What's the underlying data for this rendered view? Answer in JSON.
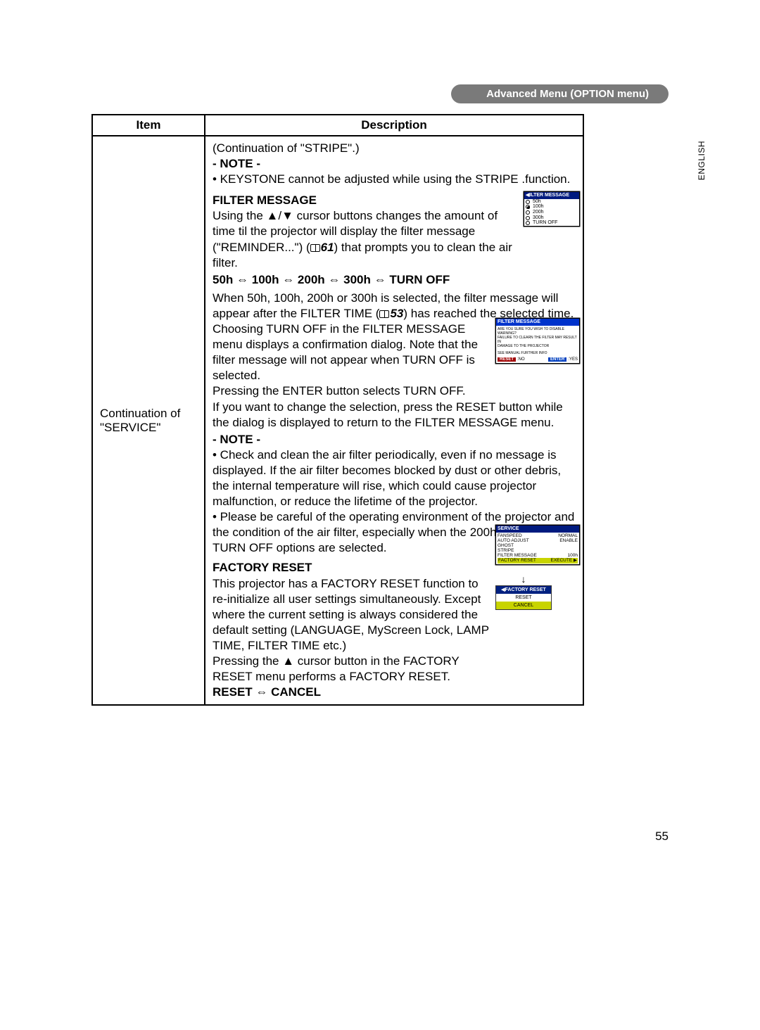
{
  "breadcrumb": "Advanced Menu (OPTION menu)",
  "lang_tab": "ENGLISH",
  "page_number": "55",
  "headers": {
    "item": "Item",
    "description": "Description"
  },
  "left_cell": "Continuation of \"SERVICE\"",
  "desc": {
    "cont_stripe": "(Continuation of \"STRIPE\".)",
    "note_label": "- NOTE -",
    "keystone_note": "• KEYSTONE cannot be adjusted while using the STRIPE .function.",
    "filter_msg_title": "FILTER MESSAGE",
    "filter_msg_1a": "Using the ▲/▼ cursor buttons changes the amount of time til the projector will display the filter message (\"REMINDER...\") (",
    "filter_msg_ref": "61",
    "filter_msg_1b": ") that prompts you to clean the air filter.",
    "filter_options": "50h ⇔ 100h ⇔ 200h ⇔ 300h ⇔ TURN OFF",
    "filter_msg_2a": "When 50h, 100h, 200h or 300h is selected, the filter message will appear after the FILTER TIME (",
    "filter_msg_2ref": "53",
    "filter_msg_2b": ") has reached the selected time.",
    "filter_msg_3": "Choosing TURN OFF in the FILTER MESSAGE menu displays a confirmation dialog. Note that the filter message will not appear when TURN OFF is selected.",
    "filter_msg_4": "Pressing the ENTER button selects TURN OFF.",
    "filter_msg_5": "If you want to change the selection, press the RESET button while the dialog is displayed to return to the FILTER MESSAGE menu.",
    "note2_1": "• Check and clean the air filter periodically, even if no message is displayed. If the air filter becomes blocked by dust or other debris, the internal temperature will rise, which could cause projector malfunction, or reduce the lifetime of the projector.",
    "note2_2": "• Please be careful of the operating environment of the projector and the condition of the air filter, especially when the 200h, 300h or TURN OFF options are selected.",
    "factory_title": "FACTORY RESET",
    "factory_1": "This projector has a FACTORY RESET function to re-initialize all user settings simultaneously. Except where the current setting is always considered the default setting (LANGUAGE, MyScreen Lock, LAMP TIME, FILTER TIME etc.)",
    "factory_2": "Pressing the ▲ cursor button in the FACTORY RESET menu performs a FACTORY RESET.",
    "reset_cancel": "RESET ⇔ CANCEL"
  },
  "osd_filter_list": {
    "title": "◀ILTER MESSAGE",
    "opts": [
      "50h",
      "100h",
      "200h",
      "300h",
      "TURN OFF"
    ],
    "selected_index": 1,
    "colors": {
      "title_bg": "#001a7f",
      "title_fg": "#ffffff",
      "bg": "#ffffff",
      "fg": "#000000"
    }
  },
  "osd_confirm": {
    "title": "FILTER MESSAGE",
    "line1": "ARE YOU SURE YOU WISH TO DISABLE WARNING?",
    "line2": "FAILURE TO CLEARN THE FILTER MAY RESULT IN",
    "line3": "DAMAGE TO THE PROJECTOR",
    "line4": "SEE MANUAL FURTHER INFO",
    "btn_no_lbl": "RESET",
    "btn_no_val": ":NO",
    "btn_yes_lbl": "ENTER",
    "btn_yes_val": ":YES",
    "colors": {
      "title_bg": "#0033cc",
      "btn_bg": "#a00000"
    }
  },
  "osd_service": {
    "title": "SERVICE",
    "rows": [
      [
        "FANSPEED",
        "NORMAL"
      ],
      [
        "AUTO ADJUST",
        "ENABLE"
      ],
      [
        "GHOST",
        ""
      ],
      [
        "STRIPE",
        ""
      ],
      [
        "FILTER MESSAGE",
        "100h"
      ],
      [
        "FACTORY RESET",
        "EXECUTE ▶"
      ]
    ],
    "highlight_row": 5,
    "factory_menu": {
      "title": "◀FACTORY RESET",
      "rows": [
        "RESET",
        "CANCEL"
      ],
      "highlight": 1
    }
  }
}
